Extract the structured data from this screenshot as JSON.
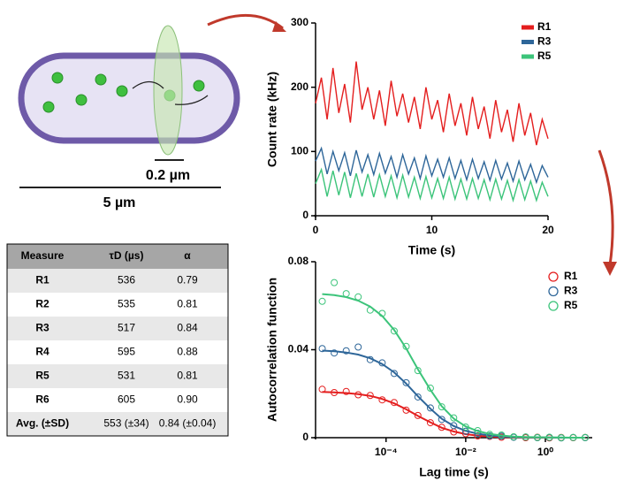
{
  "diagram": {
    "small_scale": "0.2 µm",
    "large_scale": "5 µm"
  },
  "table": {
    "header": [
      "Measure",
      "τD (µs)",
      "α"
    ],
    "rows": [
      [
        "R1",
        "536",
        "0.79"
      ],
      [
        "R2",
        "535",
        "0.81"
      ],
      [
        "R3",
        "517",
        "0.84"
      ],
      [
        "R4",
        "595",
        "0.88"
      ],
      [
        "R5",
        "531",
        "0.81"
      ],
      [
        "R6",
        "605",
        "0.90"
      ],
      [
        "Avg. (±SD)",
        "553 (±34)",
        "0.84 (±0.04)"
      ]
    ]
  },
  "chart_data": [
    {
      "type": "line",
      "xlabel": "Time (s)",
      "ylabel": "Count rate (kHz)",
      "xlim": [
        0,
        20
      ],
      "xticks": [
        0,
        10,
        20
      ],
      "ylim": [
        0,
        300
      ],
      "yticks": [
        0,
        100,
        200,
        300
      ],
      "legend": "upper right",
      "x": [
        0,
        0.5,
        1,
        1.5,
        2,
        2.5,
        3,
        3.5,
        4,
        4.5,
        5,
        5.5,
        6,
        6.5,
        7,
        7.5,
        8,
        8.5,
        9,
        9.5,
        10,
        10.5,
        11,
        11.5,
        12,
        12.5,
        13,
        13.5,
        14,
        14.5,
        15,
        15.5,
        16,
        16.5,
        17,
        17.5,
        18,
        18.5,
        19,
        19.5,
        20
      ],
      "series": [
        {
          "name": "R1",
          "color": "#e41e1e",
          "values": [
            175,
            215,
            150,
            230,
            160,
            205,
            145,
            240,
            165,
            200,
            150,
            195,
            140,
            210,
            155,
            190,
            145,
            185,
            135,
            200,
            150,
            180,
            130,
            190,
            140,
            175,
            125,
            185,
            135,
            170,
            120,
            180,
            130,
            165,
            115,
            175,
            125,
            160,
            110,
            150,
            120
          ]
        },
        {
          "name": "R3",
          "color": "#2e6699",
          "values": [
            85,
            105,
            65,
            100,
            70,
            98,
            62,
            102,
            68,
            95,
            64,
            97,
            66,
            92,
            60,
            95,
            65,
            90,
            58,
            93,
            62,
            88,
            60,
            90,
            58,
            86,
            56,
            88,
            58,
            84,
            55,
            86,
            57,
            82,
            54,
            85,
            56,
            80,
            52,
            78,
            60
          ]
        },
        {
          "name": "R5",
          "color": "#3cc47a",
          "values": [
            50,
            72,
            30,
            70,
            32,
            68,
            28,
            66,
            30,
            65,
            29,
            64,
            30,
            62,
            28,
            63,
            29,
            60,
            27,
            61,
            28,
            58,
            27,
            60,
            26,
            57,
            26,
            58,
            27,
            56,
            25,
            57,
            26,
            55,
            24,
            56,
            25,
            54,
            24,
            52,
            30
          ]
        }
      ]
    },
    {
      "type": "scatter",
      "xlabel": "Lag time (s)",
      "ylabel": "Autocorrelation function",
      "xscale": "log",
      "xlim": [
        1.7e-06,
        15
      ],
      "xticks": [
        {
          "value": 0.0001,
          "label": "10⁻⁴"
        },
        {
          "value": 0.01,
          "label": "10⁻²"
        },
        {
          "value": 1,
          "label": "10⁰"
        }
      ],
      "ylim": [
        0,
        0.08
      ],
      "yticks": [
        0,
        0.04,
        0.08
      ],
      "legend": "upper right",
      "x": [
        2.5e-06,
        5e-06,
        1e-05,
        2e-05,
        4e-05,
        8e-05,
        0.00016,
        0.00032,
        0.00063,
        0.0013,
        0.0025,
        0.005,
        0.01,
        0.02,
        0.04,
        0.079,
        0.16,
        0.32,
        0.63,
        1.26,
        2.5,
        5,
        10
      ],
      "series": [
        {
          "name": "R1",
          "color": "#e41e1e",
          "values": [
            0.022,
            0.0205,
            0.021,
            0.0195,
            0.0192,
            0.0172,
            0.016,
            0.0125,
            0.0101,
            0.0068,
            0.0047,
            0.0026,
            0.0018,
            0.0008,
            0.0006,
            0.0002,
            0.0003,
            0,
            0.0002,
            -0.0001,
            0.0001,
            0,
            0.0001
          ],
          "fit": [
            0.0208,
            0.0206,
            0.0203,
            0.0198,
            0.019,
            0.0176,
            0.0156,
            0.0129,
            0.0099,
            0.007,
            0.0045,
            0.0028,
            0.0016,
            0.0009,
            0.0005,
            0.0003,
            0.0002,
            0.0001,
            0.0001,
            0,
            0,
            0,
            0
          ]
        },
        {
          "name": "R3",
          "color": "#2e6699",
          "values": [
            0.0405,
            0.0385,
            0.0395,
            0.0412,
            0.0355,
            0.034,
            0.0292,
            0.025,
            0.0185,
            0.0135,
            0.0083,
            0.0055,
            0.0029,
            0.002,
            0.0008,
            0.0007,
            0.0002,
            0.0003,
            0,
            0.0001,
            -0.0001,
            0.0001,
            0
          ],
          "fit": [
            0.0396,
            0.0393,
            0.0387,
            0.0378,
            0.0361,
            0.0335,
            0.0297,
            0.0246,
            0.0188,
            0.0132,
            0.0086,
            0.0053,
            0.0031,
            0.0018,
            0.001,
            0.0006,
            0.0003,
            0.0002,
            0.0001,
            0.0001,
            0,
            0,
            0
          ]
        },
        {
          "name": "R5",
          "color": "#3cc47a",
          "values": [
            0.062,
            0.0705,
            0.0655,
            0.064,
            0.058,
            0.0565,
            0.0485,
            0.0415,
            0.0305,
            0.0225,
            0.014,
            0.009,
            0.0048,
            0.0032,
            0.0015,
            0.0012,
            0.0004,
            0.0003,
            0.0001,
            0.0002,
            0,
            0.0001,
            0.0001
          ],
          "fit": [
            0.0653,
            0.0648,
            0.0639,
            0.0623,
            0.0596,
            0.0553,
            0.049,
            0.0406,
            0.0311,
            0.0218,
            0.0143,
            0.0087,
            0.0051,
            0.003,
            0.0017,
            0.001,
            0.0005,
            0.0003,
            0.0002,
            0.0001,
            0.0001,
            0,
            0
          ]
        }
      ]
    }
  ]
}
